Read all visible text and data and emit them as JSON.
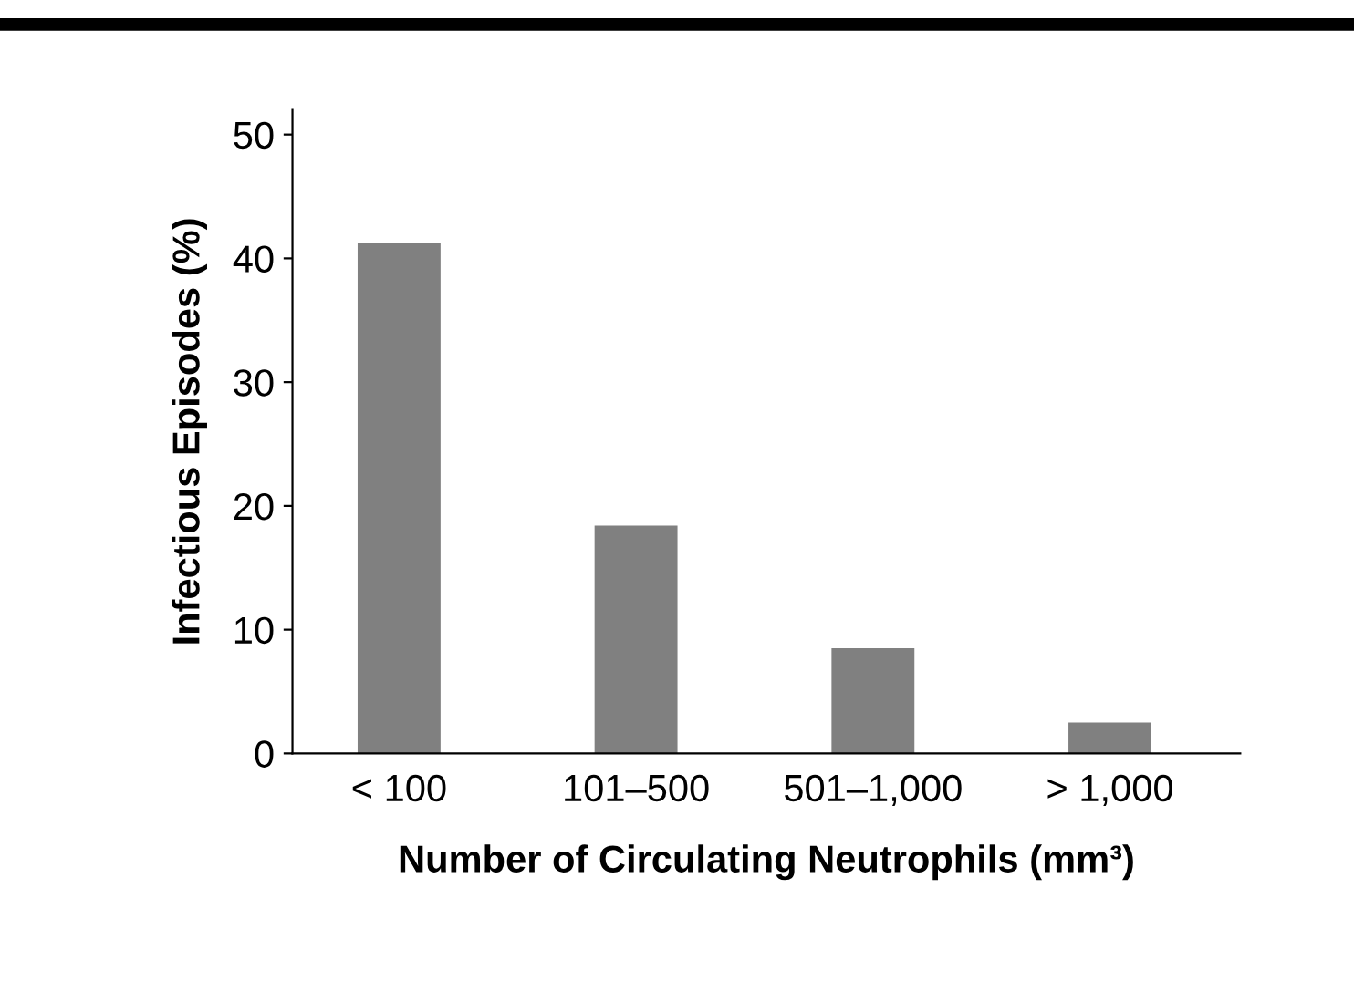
{
  "chart_data": {
    "type": "bar",
    "xlabel": "Number of Circulating Neutrophils (mm³)",
    "ylabel": "Infectious Episodes (%)",
    "categories": [
      "< 100",
      "101–500",
      "501–1,000",
      "> 1,000"
    ],
    "values": [
      41.2,
      18.4,
      8.5,
      2.5
    ],
    "color": "#808080",
    "ylim": [
      0,
      52
    ],
    "yticks": [
      0,
      10,
      20,
      30,
      40,
      50
    ],
    "grid": false,
    "legend": false
  }
}
